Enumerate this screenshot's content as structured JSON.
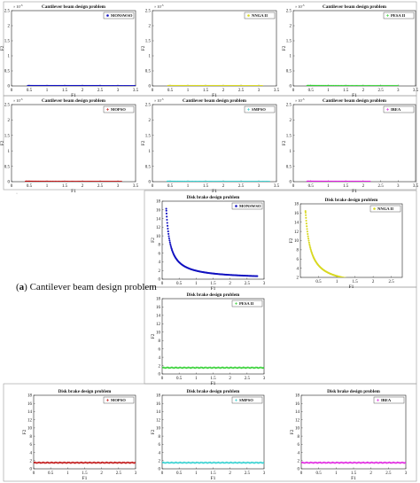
{
  "caption": {
    "label": "a",
    "text": "Cantilever beam design problem"
  },
  "stray_mark": "·",
  "chart_data": [
    {
      "type": "scatter",
      "title": "Cantilever beam design problem",
      "xlabel": "F1",
      "ylabel": "F2",
      "exponent_label": "× 10",
      "exponent_power": "-3",
      "xlim": [
        0,
        3.5
      ],
      "ylim": [
        0,
        2.5
      ],
      "xticks": [
        "0",
        "0.5",
        "1",
        "1.5",
        "2",
        "2.5",
        "3",
        "3.5"
      ],
      "yticks": [
        "0",
        "0.5",
        "1",
        "1.5",
        "2",
        "2.5"
      ],
      "series": [
        {
          "name": "MONSWSO",
          "color": "#1010c0",
          "shape": "dot",
          "x_range": [
            0.46,
            3.5
          ],
          "k": 0.00093
        }
      ]
    },
    {
      "type": "scatter",
      "title": "",
      "xlabel": "F1",
      "ylabel": "F2",
      "exponent_label": "× 10",
      "exponent_power": "-3",
      "xlim": [
        0,
        3.5
      ],
      "ylim": [
        0,
        2.5
      ],
      "xticks": [
        "0",
        "0.5",
        "1",
        "1.5",
        "2",
        "2.5",
        "3",
        "3.5"
      ],
      "yticks": [
        "0",
        "0.5",
        "1",
        "1.5",
        "2",
        "2.5"
      ],
      "series": [
        {
          "name": "NNGA II",
          "color": "#d8d820",
          "shape": "dot",
          "x_range": [
            0.44,
            3.1
          ],
          "k": 0.00093
        }
      ]
    },
    {
      "type": "scatter",
      "title": "Cantilever beam design problem",
      "xlabel": "F1",
      "ylabel": "F2",
      "exponent_label": "× 10",
      "exponent_power": "-3",
      "xlim": [
        0,
        3.5
      ],
      "ylim": [
        0,
        2.5
      ],
      "xticks": [
        "0",
        "0.5",
        "1",
        "1.5",
        "2",
        "2.5",
        "3",
        "3.5"
      ],
      "yticks": [
        "0",
        "0.5",
        "1",
        "1.5",
        "2",
        "2.5"
      ],
      "series": [
        {
          "name": "PESA II",
          "color": "#30d030",
          "shape": "star",
          "x_range": [
            0.4,
            3.0
          ],
          "k": 0.00093
        }
      ]
    },
    {
      "type": "scatter",
      "title": "Cantilever beam design problem",
      "xlabel": "F1",
      "ylabel": "F2",
      "exponent_label": "× 10",
      "exponent_power": "-3",
      "xlim": [
        0,
        3.5
      ],
      "ylim": [
        0,
        2.5
      ],
      "xticks": [
        "0",
        "0.5",
        "1",
        "1.5",
        "2",
        "2.5",
        "3",
        "3.5"
      ],
      "yticks": [
        "0",
        "0.5",
        "1",
        "1.5",
        "2",
        "2.5"
      ],
      "series": [
        {
          "name": "MOPSO",
          "color": "#c01010",
          "shape": "star",
          "x_range": [
            0.4,
            3.1
          ],
          "k": 0.00093
        }
      ]
    },
    {
      "type": "scatter",
      "title": "Cantilever beam design problem",
      "xlabel": "F1",
      "ylabel": "F2",
      "exponent_label": "× 10",
      "exponent_power": "-3",
      "xlim": [
        0,
        3.5
      ],
      "ylim": [
        0,
        2.5
      ],
      "xticks": [
        "0",
        "0.5",
        "1",
        "1.5",
        "2",
        "2.5",
        "3",
        "3.5"
      ],
      "yticks": [
        "0",
        "0.5",
        "1",
        "1.5",
        "2",
        "2.5"
      ],
      "series": [
        {
          "name": "SMPSO",
          "color": "#30d0d0",
          "shape": "star",
          "x_range": [
            0.42,
            3.3
          ],
          "k": 0.00093
        }
      ]
    },
    {
      "type": "scatter",
      "title": "Cantilever beam design problem",
      "xlabel": "F1",
      "ylabel": "F2",
      "exponent_label": "× 10",
      "exponent_power": "-3",
      "xlim": [
        0,
        3.5
      ],
      "ylim": [
        0,
        2.5
      ],
      "xticks": [
        "0",
        "0.5",
        "1",
        "1.5",
        "2",
        "2.5",
        "3",
        "3.5"
      ],
      "yticks": [
        "0",
        "0.5",
        "1",
        "1.5",
        "2",
        "2.5"
      ],
      "series": [
        {
          "name": "IBEA",
          "color": "#e020e0",
          "shape": "star",
          "x_range": [
            0.4,
            2.2
          ],
          "k": 0.00093
        }
      ]
    },
    {
      "type": "scatter",
      "title": "Disk brake design problem",
      "xlabel": "F1",
      "ylabel": "F2",
      "exponent_label": "",
      "exponent_power": "",
      "xlim": [
        0,
        3
      ],
      "ylim": [
        0,
        18
      ],
      "xticks": [
        "0",
        "0.5",
        "1",
        "1.5",
        "2",
        "2.5",
        "3"
      ],
      "yticks": [
        "0",
        "2",
        "4",
        "6",
        "8",
        "10",
        "12",
        "14",
        "16",
        "18"
      ],
      "series": [
        {
          "name": "MONSWSO",
          "color": "#1010c0",
          "shape": "dot",
          "x_range": [
            0.12,
            2.8
          ],
          "k": 1.95
        }
      ]
    },
    {
      "type": "scatter",
      "title": "Disk brake design problem",
      "xlabel": "F1",
      "ylabel": "F2",
      "exponent_label": "",
      "exponent_power": "",
      "xlim": [
        0,
        2.8
      ],
      "ylim": [
        2,
        18
      ],
      "xticks": [
        "0.5",
        "1",
        "1.5",
        "2",
        "2.5"
      ],
      "yticks": [
        "2",
        "4",
        "6",
        "8",
        "10",
        "12",
        "14",
        "16",
        "18"
      ],
      "series": [
        {
          "name": "NNGA II",
          "color": "#d8d820",
          "shape": "dot",
          "x_range": [
            0.14,
            2.6
          ],
          "k": 2.3
        }
      ]
    },
    {
      "type": "scatter",
      "title": "Disk brake design problem",
      "xlabel": "F1",
      "ylabel": "F2",
      "exponent_label": "",
      "exponent_power": "",
      "xlim": [
        0,
        3
      ],
      "ylim": [
        0,
        18
      ],
      "xticks": [
        "0",
        "0.5",
        "1",
        "1.5",
        "2",
        "2.5",
        "3"
      ],
      "yticks": [
        "0",
        "2",
        "4",
        "6",
        "8",
        "10",
        "12",
        "14",
        "16",
        "18"
      ],
      "series": [
        {
          "name": "PESA II",
          "color": "#30d030",
          "shape": "star",
          "x_range": [
            0.0,
            3.0
          ],
          "flat": 1.5
        }
      ]
    },
    {
      "type": "scatter",
      "title": "Disk brake design problem",
      "xlabel": "F1",
      "ylabel": "F2",
      "exponent_label": "",
      "exponent_power": "",
      "xlim": [
        0,
        3
      ],
      "ylim": [
        0,
        18
      ],
      "xticks": [
        "0",
        "0.5",
        "1",
        "1.5",
        "2",
        "2.5",
        "3"
      ],
      "yticks": [
        "0",
        "2",
        "4",
        "6",
        "8",
        "10",
        "12",
        "14",
        "16",
        "18"
      ],
      "series": [
        {
          "name": "MOPSO",
          "color": "#c01010",
          "shape": "star",
          "x_range": [
            0.0,
            3.0
          ],
          "flat": 1.5
        }
      ]
    },
    {
      "type": "scatter",
      "title": "Disk brake design problem",
      "xlabel": "F1",
      "ylabel": "F2",
      "exponent_label": "",
      "exponent_power": "",
      "xlim": [
        0,
        3
      ],
      "ylim": [
        0,
        18
      ],
      "xticks": [
        "0",
        "0.5",
        "1",
        "1.5",
        "2",
        "2.5",
        "3"
      ],
      "yticks": [
        "0",
        "2",
        "4",
        "6",
        "8",
        "10",
        "12",
        "14",
        "16",
        "18"
      ],
      "series": [
        {
          "name": "SMPSO",
          "color": "#30d0d0",
          "shape": "star",
          "x_range": [
            0.0,
            3.0
          ],
          "flat": 1.5
        }
      ]
    },
    {
      "type": "scatter",
      "title": "Disk brake design problem",
      "xlabel": "F1",
      "ylabel": "F2",
      "exponent_label": "",
      "exponent_power": "",
      "xlim": [
        0,
        3
      ],
      "ylim": [
        0,
        18
      ],
      "xticks": [
        "0",
        "0.5",
        "1",
        "1.5",
        "2",
        "2.5",
        "3"
      ],
      "yticks": [
        "0",
        "2",
        "4",
        "6",
        "8",
        "10",
        "12",
        "14",
        "16",
        "18"
      ],
      "series": [
        {
          "name": "IBEA",
          "color": "#e020e0",
          "shape": "star",
          "x_range": [
            0.0,
            3.0
          ],
          "flat": 1.5
        }
      ]
    }
  ]
}
